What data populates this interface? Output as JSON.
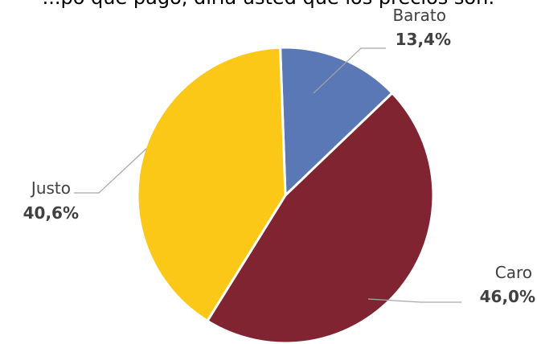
{
  "chart_data": {
    "type": "pie",
    "title": "...po que pagó, diría usted que los precios son:",
    "categories": [
      "Barato",
      "Caro",
      "Justo"
    ],
    "values": [
      13.4,
      46.0,
      40.6
    ],
    "value_labels": [
      "13,4%",
      "46,0%",
      "40,6%"
    ],
    "colors": [
      "#5b78b6",
      "#7f2430",
      "#fbc818"
    ],
    "legend": "none",
    "start_angle_deg": -2
  }
}
